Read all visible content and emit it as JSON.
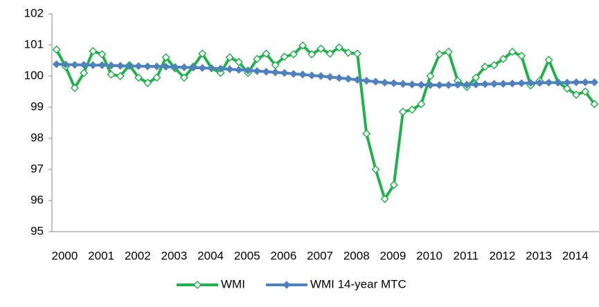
{
  "chart_data": {
    "type": "line",
    "categories": [
      "2000",
      null,
      null,
      null,
      "2001",
      null,
      null,
      null,
      "2002",
      null,
      null,
      null,
      "2003",
      null,
      null,
      null,
      "2004",
      null,
      null,
      null,
      "2005",
      null,
      null,
      null,
      "2006",
      null,
      null,
      null,
      "2007",
      null,
      null,
      null,
      "2008",
      null,
      null,
      null,
      "2009",
      null,
      null,
      null,
      "2010",
      null,
      null,
      null,
      "2011",
      null,
      null,
      null,
      "2012",
      null,
      null,
      null,
      "2013",
      null,
      null,
      null,
      "2014",
      null,
      null,
      null
    ],
    "series": [
      {
        "name": "WMI",
        "color": "#1fb14b",
        "marker": "diamond-open",
        "values": [
          100.85,
          100.3,
          99.62,
          100.1,
          100.8,
          100.7,
          100.05,
          100.0,
          100.35,
          99.95,
          99.78,
          99.95,
          100.6,
          100.25,
          99.95,
          100.3,
          100.72,
          100.25,
          100.1,
          100.6,
          100.45,
          100.1,
          100.55,
          100.72,
          100.35,
          100.62,
          100.7,
          100.98,
          100.7,
          100.88,
          100.72,
          100.92,
          100.75,
          100.72,
          98.15,
          97.0,
          96.05,
          96.5,
          98.85,
          98.92,
          99.1,
          100.0,
          100.7,
          100.78,
          99.85,
          99.65,
          99.95,
          100.3,
          100.35,
          100.55,
          100.78,
          100.65,
          99.7,
          99.85,
          100.52,
          99.8,
          99.6,
          99.4,
          99.5,
          99.1
        ]
      },
      {
        "name": "WMI 14-year MTC",
        "color": "#4f81bd",
        "marker": "diamond",
        "values": [
          100.38,
          100.37,
          100.36,
          100.36,
          100.35,
          100.35,
          100.34,
          100.33,
          100.32,
          100.32,
          100.31,
          100.31,
          100.3,
          100.29,
          100.28,
          100.27,
          100.26,
          100.25,
          100.24,
          100.22,
          100.2,
          100.18,
          100.16,
          100.14,
          100.12,
          100.1,
          100.07,
          100.05,
          100.02,
          100.0,
          99.97,
          99.94,
          99.91,
          99.88,
          99.85,
          99.82,
          99.79,
          99.77,
          99.75,
          99.73,
          99.72,
          99.71,
          99.71,
          99.71,
          99.72,
          99.72,
          99.73,
          99.74,
          99.75,
          99.75,
          99.76,
          99.77,
          99.78,
          99.78,
          99.79,
          99.79,
          99.79,
          99.8,
          99.8,
          99.8
        ]
      }
    ],
    "ylim": [
      95,
      102
    ],
    "yticks": [
      95,
      96,
      97,
      98,
      99,
      100,
      101,
      102
    ],
    "legend": "bottom"
  }
}
